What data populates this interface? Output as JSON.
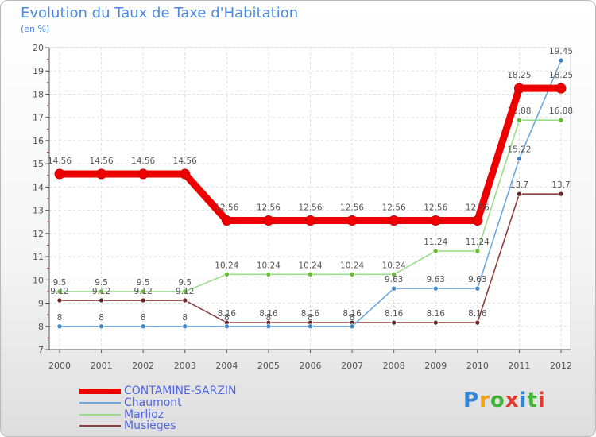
{
  "chart_data": {
    "type": "line",
    "title": "Evolution du Taux de Taxe d'Habitation",
    "unit_label": "(en %)",
    "xlabel": "",
    "ylabel": "",
    "ylim": [
      7,
      20
    ],
    "yticks": [
      "7",
      "8",
      "9",
      "10",
      "11",
      "12",
      "13",
      "14",
      "15",
      "16",
      "17",
      "18",
      "19",
      "20"
    ],
    "categories": [
      "2000",
      "2001",
      "2002",
      "2003",
      "2004",
      "2005",
      "2006",
      "2007",
      "2008",
      "2009",
      "2010",
      "2011",
      "2012"
    ],
    "grid": true,
    "legend": "bottom-left",
    "series": [
      {
        "name": "Marlioz",
        "color": "#99dd88",
        "marker": "#66bb33",
        "values": [
          9.5,
          9.5,
          9.5,
          9.5,
          10.24,
          10.24,
          10.24,
          10.24,
          10.24,
          11.24,
          11.24,
          16.88,
          16.88
        ],
        "labels": [
          "9.5",
          "9.5",
          "9.5",
          "9.5",
          "10.24",
          "10.24",
          "10.24",
          "10.24",
          "10.24",
          "11.24",
          "11.24",
          "16.88",
          "16.88"
        ]
      },
      {
        "name": "Musièges",
        "color": "#8b3f3f",
        "marker": "#6a2626",
        "values": [
          9.12,
          9.12,
          9.12,
          9.12,
          8.16,
          8.16,
          8.16,
          8.16,
          8.16,
          8.16,
          8.16,
          13.7,
          13.7
        ],
        "labels": [
          "9.12",
          "9.12",
          "9.12",
          "9.12",
          "8.16",
          "8.16",
          "8.16",
          "8.16",
          "8.16",
          "8.16",
          "8.16",
          "13.7",
          "13.7"
        ]
      },
      {
        "name": "Chaumont",
        "color": "#6fa8dc",
        "marker": "#3d85c6",
        "values": [
          8,
          8,
          8,
          8,
          8,
          8,
          8,
          8,
          9.63,
          9.63,
          9.63,
          15.22,
          19.45
        ],
        "labels": [
          "8",
          "8",
          "8",
          "8",
          "8",
          "8",
          "8",
          "8",
          "9.63",
          "9.63",
          "9.63",
          "15.22",
          "19.45"
        ]
      },
      {
        "name": "CONTAMINE-SARZIN",
        "color": "#ee0000",
        "marker": "#ee0000",
        "values": [
          14.56,
          14.56,
          14.56,
          14.56,
          12.56,
          12.56,
          12.56,
          12.56,
          12.56,
          12.56,
          12.56,
          18.25,
          18.25
        ],
        "labels": [
          "14.56",
          "14.56",
          "14.56",
          "14.56",
          "12.56",
          "12.56",
          "12.56",
          "12.56",
          "12.56",
          "12.56",
          "12.56",
          "18.25",
          "18.25"
        ]
      }
    ]
  },
  "legend_items": [
    {
      "label": "CONTAMINE-SARZIN",
      "color": "#ee0000"
    },
    {
      "label": "Chaumont",
      "color": "#6fa8dc"
    },
    {
      "label": "Marlioz",
      "color": "#99dd88"
    },
    {
      "label": "Musièges",
      "color": "#8b3f3f"
    }
  ],
  "brand": {
    "text": "Proxiti",
    "colors": [
      "#2f86d6",
      "#f2a21b",
      "#45b23b",
      "#e03c2e",
      "#2f86d6",
      "#45b23b",
      "#e03c2e"
    ]
  }
}
